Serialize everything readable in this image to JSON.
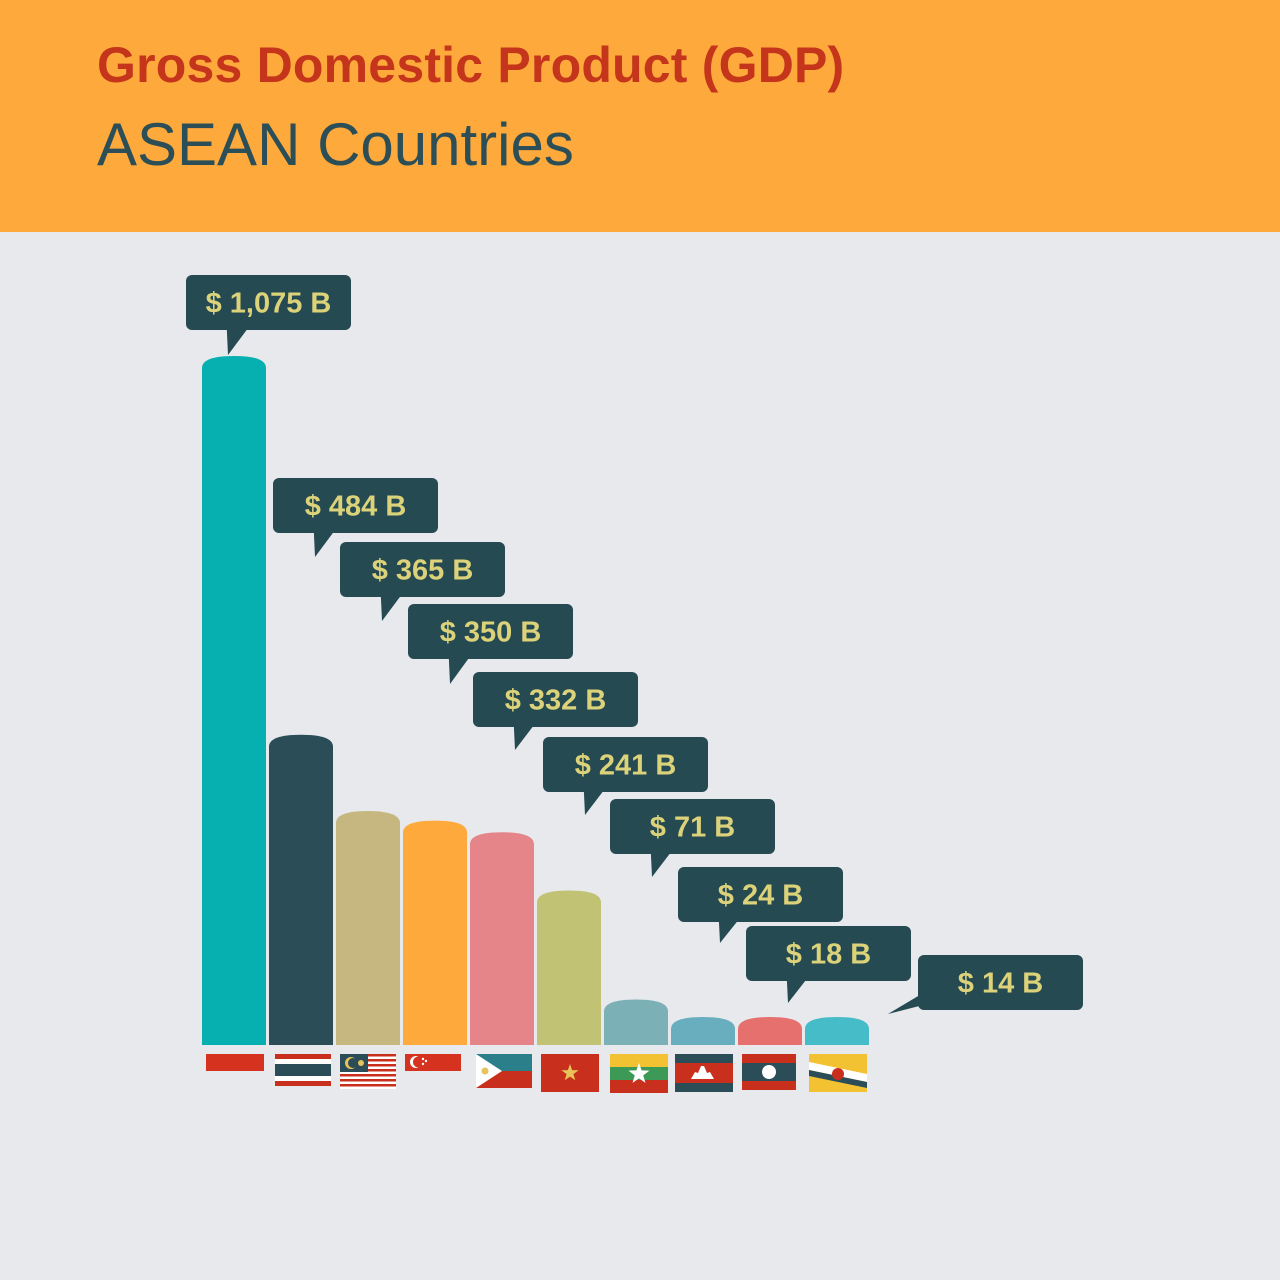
{
  "header": {
    "title": "Gross Domestic Product (GDP)",
    "subtitle": "ASEAN Countries"
  },
  "colors": {
    "header_bg": "#fea93b",
    "title": "#c4351b",
    "subtitle": "#2b4e57",
    "callout_bg": "#264a52",
    "callout_text": "#dcd27a",
    "page_bg": "#e8e9ed"
  },
  "chart_data": {
    "type": "bar",
    "unit": "B",
    "categories": [
      "flag-indonesia",
      "flag-thailand",
      "flag-malaysia",
      "flag-singapore",
      "flag-philippines",
      "flag-vietnam",
      "flag-myanmar",
      "flag-cambodia",
      "flag-laos",
      "flag-brunei"
    ],
    "values": [
      1075,
      484,
      365,
      350,
      332,
      241,
      71,
      24,
      18,
      14
    ],
    "labels": [
      "$ 1,075 B",
      "$ 484 B",
      "$ 365 B",
      "$ 350 B",
      "$ 332 B",
      "$ 241 B",
      "$ 71 B",
      "$ 24 B",
      "$ 18 B",
      "$ 14 B"
    ],
    "bar_colors": [
      "#07b0b0",
      "#2a4d57",
      "#c6b781",
      "#fea93b",
      "#e5858a",
      "#c2c274",
      "#7bb0b7",
      "#68aebf",
      "#e5706d",
      "#46bcc8"
    ],
    "legend": "none",
    "grid": false
  }
}
